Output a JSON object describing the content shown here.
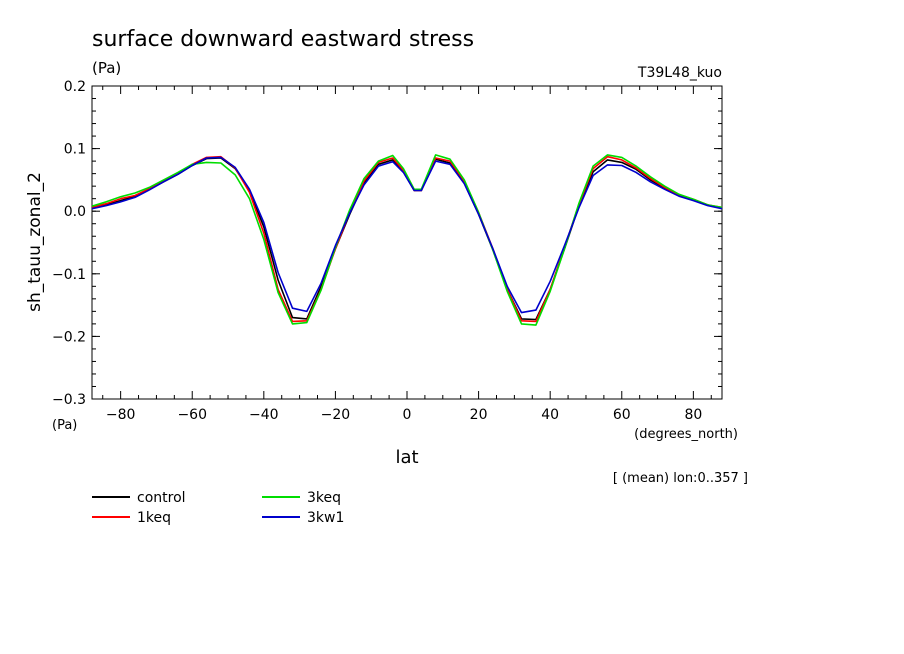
{
  "chart_data": {
    "type": "line",
    "title": "surface downward eastward stress",
    "ylabel": "sh_tauu_zonal_2",
    "yunit": "(Pa)",
    "yunit_bottom": "(Pa)",
    "run_label": "T39L48_kuo",
    "xlabel": "lat",
    "xunit": "(degrees_north)",
    "footnote": "[ (mean) lon:0..357 ]",
    "xlim": [
      -88,
      88
    ],
    "ylim": [
      -0.3,
      0.2
    ],
    "x_ticks": [
      -80,
      -60,
      -40,
      -20,
      0,
      20,
      40,
      60,
      80
    ],
    "x_tick_labels": [
      "−80",
      "−60",
      "−40",
      "−20",
      "0",
      "20",
      "40",
      "60",
      "80"
    ],
    "y_ticks": [
      -0.3,
      -0.2,
      -0.1,
      0.0,
      0.1,
      0.2
    ],
    "y_tick_labels": [
      "−0.3",
      "−0.2",
      "−0.1",
      "0.0",
      "0.1",
      "0.2"
    ],
    "grid": false,
    "legend_position": "bottom-left",
    "x": [
      -88,
      -84,
      -80,
      -76,
      -72,
      -68,
      -64,
      -60,
      -56,
      -52,
      -48,
      -44,
      -40,
      -36,
      -32,
      -28,
      -24,
      -20,
      -16,
      -12,
      -8,
      -4,
      -1,
      2,
      4,
      8,
      12,
      16,
      20,
      24,
      28,
      32,
      36,
      40,
      44,
      48,
      52,
      56,
      60,
      64,
      68,
      72,
      76,
      80,
      84,
      88
    ],
    "series": [
      {
        "name": "control",
        "color": "#000000",
        "values": [
          0.005,
          0.01,
          0.017,
          0.024,
          0.035,
          0.047,
          0.059,
          0.073,
          0.084,
          0.085,
          0.068,
          0.033,
          -0.025,
          -0.11,
          -0.17,
          -0.172,
          -0.12,
          -0.06,
          -0.005,
          0.045,
          0.075,
          0.082,
          0.063,
          0.033,
          0.033,
          0.083,
          0.077,
          0.045,
          -0.005,
          -0.062,
          -0.125,
          -0.172,
          -0.173,
          -0.125,
          -0.06,
          0.008,
          0.063,
          0.082,
          0.078,
          0.067,
          0.05,
          0.037,
          0.025,
          0.018,
          0.01,
          0.005
        ]
      },
      {
        "name": "1keq",
        "color": "#ff0000",
        "values": [
          0.006,
          0.012,
          0.02,
          0.025,
          0.036,
          0.048,
          0.06,
          0.075,
          0.086,
          0.087,
          0.069,
          0.03,
          -0.035,
          -0.125,
          -0.176,
          -0.175,
          -0.125,
          -0.06,
          -0.002,
          0.048,
          0.078,
          0.085,
          0.065,
          0.033,
          0.033,
          0.085,
          0.08,
          0.048,
          -0.002,
          -0.06,
          -0.125,
          -0.175,
          -0.176,
          -0.125,
          -0.058,
          0.01,
          0.068,
          0.087,
          0.082,
          0.069,
          0.052,
          0.038,
          0.026,
          0.019,
          0.01,
          0.006
        ]
      },
      {
        "name": "3keq",
        "color": "#00dd00",
        "values": [
          0.008,
          0.015,
          0.023,
          0.029,
          0.038,
          0.05,
          0.062,
          0.075,
          0.078,
          0.077,
          0.058,
          0.02,
          -0.045,
          -0.13,
          -0.18,
          -0.178,
          -0.126,
          -0.058,
          0.002,
          0.052,
          0.08,
          0.089,
          0.068,
          0.035,
          0.035,
          0.09,
          0.083,
          0.05,
          -0.002,
          -0.062,
          -0.128,
          -0.18,
          -0.182,
          -0.128,
          -0.06,
          0.012,
          0.072,
          0.09,
          0.086,
          0.072,
          0.055,
          0.04,
          0.027,
          0.019,
          0.01,
          0.006
        ]
      },
      {
        "name": "3kw1",
        "color": "#0000cc",
        "values": [
          0.004,
          0.009,
          0.015,
          0.022,
          0.034,
          0.047,
          0.059,
          0.073,
          0.085,
          0.086,
          0.07,
          0.035,
          -0.018,
          -0.098,
          -0.155,
          -0.16,
          -0.115,
          -0.055,
          -0.003,
          0.042,
          0.072,
          0.079,
          0.062,
          0.033,
          0.033,
          0.08,
          0.075,
          0.044,
          -0.005,
          -0.06,
          -0.12,
          -0.162,
          -0.158,
          -0.112,
          -0.055,
          0.005,
          0.057,
          0.074,
          0.073,
          0.062,
          0.047,
          0.035,
          0.024,
          0.017,
          0.009,
          0.004
        ]
      }
    ]
  }
}
